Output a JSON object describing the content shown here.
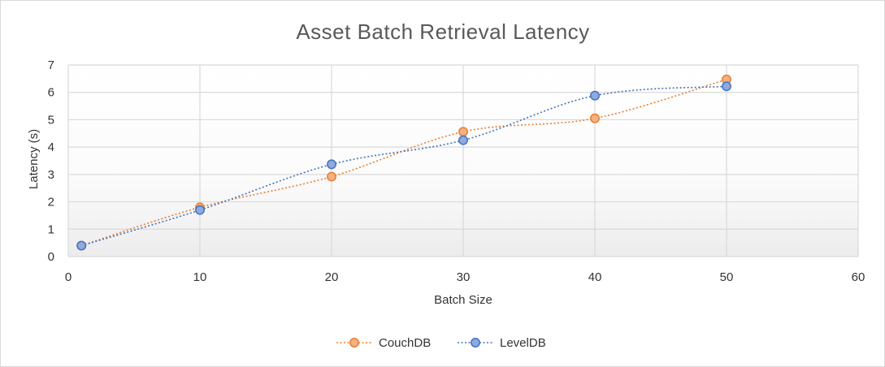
{
  "chart_data": {
    "type": "scatter",
    "title": "Asset Batch Retrieval Latency",
    "xlabel": "Batch Size",
    "ylabel": "Latency (s)",
    "xlim": [
      0,
      60
    ],
    "ylim": [
      0,
      7
    ],
    "xticks": [
      0,
      10,
      20,
      30,
      40,
      50,
      60
    ],
    "yticks": [
      0,
      1,
      2,
      3,
      4,
      5,
      6,
      7
    ],
    "grid": true,
    "legend_position": "bottom",
    "series": [
      {
        "name": "CouchDB",
        "color": "#ed7d31",
        "fill": "#f4b183",
        "x": [
          1,
          10,
          20,
          30,
          40,
          50
        ],
        "y": [
          0.4,
          1.8,
          2.92,
          4.56,
          5.05,
          6.47
        ]
      },
      {
        "name": "LevelDB",
        "color": "#4472c4",
        "fill": "#8faadc",
        "x": [
          1,
          10,
          20,
          30,
          40,
          50
        ],
        "y": [
          0.4,
          1.7,
          3.37,
          4.25,
          5.88,
          6.22
        ]
      }
    ]
  }
}
